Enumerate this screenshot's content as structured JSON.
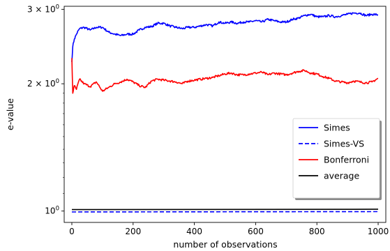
{
  "chart_data": {
    "type": "line",
    "xlabel": "number of observations",
    "ylabel": "e-value",
    "xlim": [
      -25,
      1025
    ],
    "ylim": [
      0.94,
      3.05
    ],
    "yscale": "log",
    "grid": false,
    "legend_position": "right",
    "x_ticks": [
      0,
      200,
      400,
      600,
      800,
      1000
    ],
    "x_tick_labels": [
      "0",
      "200",
      "400",
      "600",
      "800",
      "1000"
    ],
    "y_ticks": [
      1,
      2,
      3
    ],
    "y_tick_labels": [
      "10^0",
      "2 × 10^0",
      "3 × 10^0"
    ],
    "series": [
      {
        "name": "Simes",
        "color": "#0000ff",
        "dash": "solid",
        "x": [
          0,
          3,
          8,
          15,
          25,
          40,
          60,
          80,
          100,
          120,
          140,
          160,
          180,
          200,
          220,
          240,
          260,
          280,
          300,
          320,
          340,
          360,
          380,
          400,
          420,
          440,
          460,
          480,
          500,
          520,
          540,
          560,
          580,
          600,
          620,
          640,
          660,
          680,
          700,
          720,
          740,
          760,
          780,
          800,
          820,
          840,
          860,
          880,
          900,
          920,
          940,
          960,
          980,
          1000
        ],
        "values": [
          2.25,
          2.45,
          2.55,
          2.62,
          2.7,
          2.72,
          2.68,
          2.72,
          2.72,
          2.65,
          2.62,
          2.6,
          2.62,
          2.62,
          2.68,
          2.72,
          2.73,
          2.78,
          2.78,
          2.74,
          2.72,
          2.7,
          2.72,
          2.72,
          2.74,
          2.76,
          2.74,
          2.8,
          2.78,
          2.8,
          2.78,
          2.8,
          2.8,
          2.82,
          2.8,
          2.84,
          2.82,
          2.8,
          2.8,
          2.84,
          2.86,
          2.9,
          2.92,
          2.88,
          2.88,
          2.9,
          2.88,
          2.9,
          2.92,
          2.94,
          2.94,
          2.9,
          2.92,
          2.91
        ]
      },
      {
        "name": "Simes-VS",
        "color": "#0000ff",
        "dash": "dashed",
        "x": [
          0,
          1000
        ],
        "values": [
          0.995,
          0.997
        ]
      },
      {
        "name": "Bonferroni",
        "color": "#ff0000",
        "dash": "solid",
        "x": [
          0,
          3,
          8,
          15,
          25,
          40,
          60,
          80,
          100,
          120,
          140,
          160,
          180,
          200,
          220,
          240,
          260,
          280,
          300,
          320,
          340,
          360,
          380,
          400,
          420,
          440,
          460,
          480,
          500,
          520,
          540,
          560,
          580,
          600,
          620,
          640,
          660,
          680,
          700,
          720,
          740,
          760,
          780,
          800,
          820,
          840,
          860,
          880,
          900,
          920,
          940,
          960,
          980,
          1000
        ],
        "values": [
          2.3,
          1.9,
          1.98,
          1.94,
          2.05,
          2.0,
          1.97,
          2.02,
          1.92,
          1.96,
          2.0,
          2.02,
          2.05,
          2.02,
          1.98,
          1.96,
          2.03,
          2.05,
          2.04,
          2.03,
          2.02,
          2.0,
          2.03,
          2.04,
          2.05,
          2.06,
          2.07,
          2.09,
          2.11,
          2.12,
          2.1,
          2.1,
          2.11,
          2.12,
          2.13,
          2.1,
          2.12,
          2.11,
          2.1,
          2.12,
          2.14,
          2.15,
          2.12,
          2.11,
          2.08,
          2.06,
          2.03,
          2.02,
          2.01,
          2.03,
          2.02,
          2.01,
          2.02,
          2.06
        ]
      },
      {
        "name": "average",
        "color": "#000000",
        "dash": "solid",
        "x": [
          0,
          1000
        ],
        "values": [
          1.008,
          1.01
        ]
      }
    ]
  }
}
